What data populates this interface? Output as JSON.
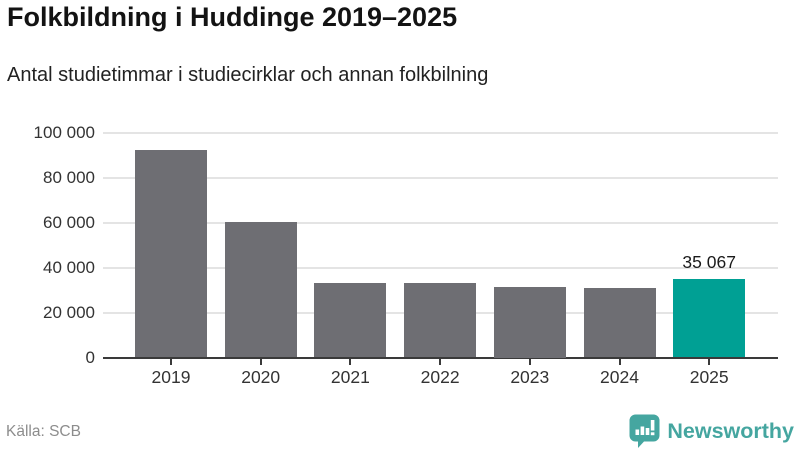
{
  "header": {
    "title": "Folkbildning i Huddinge 2019–2025",
    "subtitle": "Antal studietimmar i studiecirklar och annan folkbilning"
  },
  "chart_data": {
    "type": "bar",
    "title": "Folkbildning i Huddinge 2019–2025",
    "subtitle": "Antal studietimmar i studiecirklar och annan folkbilning",
    "categories": [
      "2019",
      "2020",
      "2021",
      "2022",
      "2023",
      "2024",
      "2025"
    ],
    "values": [
      92200,
      60400,
      33300,
      33300,
      31500,
      30900,
      35067
    ],
    "highlight_index": 6,
    "highlight_value_label": "35 067",
    "xlabel": "",
    "ylabel": "",
    "ylim": [
      0,
      100000
    ],
    "ytick_step": 20000,
    "ytick_labels": [
      "0",
      "20 000",
      "40 000",
      "60 000",
      "80 000",
      "100 000"
    ],
    "grid": true,
    "legend": "none",
    "bar_color": "#6e6e73",
    "highlight_color": "#00a094",
    "gridline_color": "#e4e4e4",
    "axis_color": "#3a3a3a"
  },
  "footer": {
    "source": "Källa: SCB",
    "brand": "Newsworthy",
    "brand_color": "#45a6a0",
    "chart-bar-icon": "teal speech-bubble with white mini bar chart and exclamation mark"
  }
}
